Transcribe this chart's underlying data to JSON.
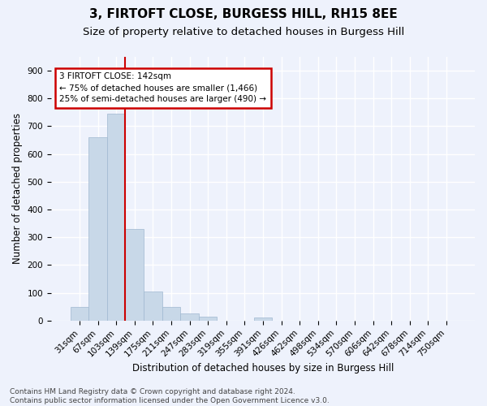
{
  "title1": "3, FIRTOFT CLOSE, BURGESS HILL, RH15 8EE",
  "title2": "Size of property relative to detached houses in Burgess Hill",
  "xlabel": "Distribution of detached houses by size in Burgess Hill",
  "ylabel": "Number of detached properties",
  "footnote": "Contains HM Land Registry data © Crown copyright and database right 2024.\nContains public sector information licensed under the Open Government Licence v3.0.",
  "bin_labels": [
    "31sqm",
    "67sqm",
    "103sqm",
    "139sqm",
    "175sqm",
    "211sqm",
    "247sqm",
    "283sqm",
    "319sqm",
    "355sqm",
    "391sqm",
    "426sqm",
    "462sqm",
    "498sqm",
    "534sqm",
    "570sqm",
    "606sqm",
    "642sqm",
    "678sqm",
    "714sqm",
    "750sqm"
  ],
  "bar_heights": [
    50,
    660,
    745,
    330,
    105,
    50,
    25,
    15,
    0,
    0,
    10,
    0,
    0,
    0,
    0,
    0,
    0,
    0,
    0,
    0,
    0
  ],
  "bar_color": "#c8d8e8",
  "bar_edge_color": "#a0b8d0",
  "vline_index": 2.5,
  "vline_color": "#cc0000",
  "annotation_text": "3 FIRTOFT CLOSE: 142sqm\n← 75% of detached houses are smaller (1,466)\n25% of semi-detached houses are larger (490) →",
  "annotation_box_color": "#cc0000",
  "ylim": [
    0,
    950
  ],
  "yticks": [
    0,
    100,
    200,
    300,
    400,
    500,
    600,
    700,
    800,
    900
  ],
  "background_color": "#eef2fc",
  "grid_color": "#ffffff",
  "title1_fontsize": 11,
  "title2_fontsize": 9.5,
  "axis_label_fontsize": 8.5,
  "tick_fontsize": 7.5,
  "footnote_fontsize": 6.5
}
